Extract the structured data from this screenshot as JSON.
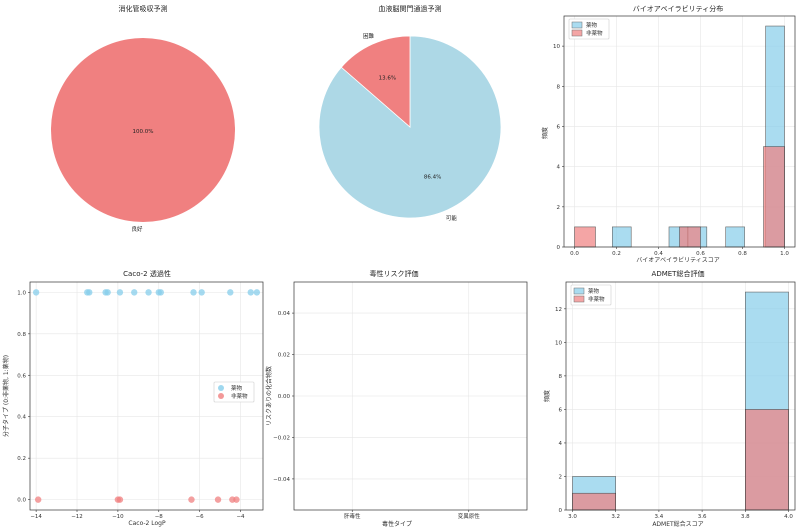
{
  "chart_data": [
    {
      "type": "pie",
      "title": "消化管吸収予測",
      "slices": [
        {
          "label": "良好",
          "value": 100.0,
          "pct_label": "100.0%",
          "color": "#f08080"
        }
      ]
    },
    {
      "type": "pie",
      "title": "血液脳関門通過予測",
      "slices": [
        {
          "label": "可能",
          "value": 86.4,
          "pct_label": "86.4%",
          "color": "#add8e6"
        },
        {
          "label": "困難",
          "value": 13.6,
          "pct_label": "13.6%",
          "color": "#f08080"
        }
      ]
    },
    {
      "type": "bar",
      "title": "バイオアベイラビリティ分布",
      "xlabel": "バイオアベイラビリティスコア",
      "ylabel": "頻度",
      "xlim": [
        -0.05,
        1.05
      ],
      "ylim": [
        0,
        11.5
      ],
      "xticks": [
        0.0,
        0.2,
        0.4,
        0.6,
        0.8,
        1.0
      ],
      "xtick_labels": [
        "0.0",
        "0.2",
        "0.4",
        "0.6",
        "0.8",
        "1.0"
      ],
      "yticks": [
        0,
        2,
        4,
        6,
        8,
        10
      ],
      "legend": [
        "薬物",
        "非薬物"
      ],
      "series": [
        {
          "name": "薬物",
          "color": "#87ceeb",
          "bins": [
            [
              0.18,
              0.27,
              1
            ],
            [
              0.45,
              0.54,
              1
            ],
            [
              0.54,
              0.63,
              1
            ],
            [
              0.72,
              0.81,
              1
            ],
            [
              0.91,
              1.0,
              11
            ]
          ]
        },
        {
          "name": "非薬物",
          "color": "#f08080",
          "bins": [
            [
              0.0,
              0.1,
              1
            ],
            [
              0.5,
              0.6,
              1
            ],
            [
              0.9,
              1.0,
              5
            ]
          ]
        }
      ]
    },
    {
      "type": "scatter",
      "title": "Caco-2 透過性",
      "xlabel": "Caco-2 LogP",
      "ylabel": "分子タイプ (0:非薬物, 1:薬物)",
      "xlim": [
        -14.3,
        -2.9
      ],
      "ylim": [
        -0.05,
        1.05
      ],
      "xticks": [
        -14,
        -12,
        -10,
        -8,
        -6,
        -4
      ],
      "xtick_labels": [
        "−14",
        "−12",
        "−10",
        "−8",
        "−6",
        "−4"
      ],
      "yticks": [
        0.0,
        0.2,
        0.4,
        0.6,
        0.8,
        1.0
      ],
      "ytick_labels": [
        "0.0",
        "0.2",
        "0.4",
        "0.6",
        "0.8",
        "1.0"
      ],
      "legend": [
        "薬物",
        "非薬物"
      ],
      "series": [
        {
          "name": "薬物",
          "color": "#87ceeb",
          "x": [
            -14.0,
            -11.5,
            -11.4,
            -10.6,
            -10.5,
            -9.9,
            -9.2,
            -8.5,
            -8.0,
            -7.9,
            -6.3,
            -5.9,
            -4.5,
            -3.5,
            -3.2
          ],
          "y": 1
        },
        {
          "name": "非薬物",
          "color": "#f08080",
          "x": [
            -13.9,
            -10.0,
            -9.9,
            -6.4,
            -5.1,
            -4.4,
            -4.2
          ],
          "y": 0
        }
      ]
    },
    {
      "type": "bar",
      "title": "毒性リスク評価",
      "xlabel": "毒性タイプ",
      "ylabel": "リスクありの化合物数",
      "categories": [
        "肝毒性",
        "変異原性"
      ],
      "values": [
        0,
        0
      ],
      "ylim": [
        -0.055,
        0.055
      ],
      "yticks": [
        -0.04,
        -0.02,
        0.0,
        0.02,
        0.04
      ],
      "ytick_labels": [
        "−0.04",
        "−0.02",
        "0.00",
        "0.02",
        "0.04"
      ]
    },
    {
      "type": "bar",
      "title": "ADMET総合評価",
      "xlabel": "ADMET総合スコア",
      "ylabel": "頻度",
      "xlim": [
        2.97,
        4.03
      ],
      "ylim": [
        0,
        13.6
      ],
      "xticks": [
        3.0,
        3.2,
        3.4,
        3.6,
        3.8,
        4.0
      ],
      "xtick_labels": [
        "3.0",
        "3.2",
        "3.4",
        "3.6",
        "3.8",
        "4.0"
      ],
      "yticks": [
        0,
        2,
        4,
        6,
        8,
        10,
        12
      ],
      "legend": [
        "薬物",
        "非薬物"
      ],
      "series": [
        {
          "name": "薬物",
          "color": "#87ceeb",
          "bins": [
            [
              3.0,
              3.2,
              2
            ],
            [
              3.8,
              4.0,
              13
            ]
          ]
        },
        {
          "name": "非薬物",
          "color": "#f08080",
          "bins": [
            [
              3.0,
              3.2,
              1
            ],
            [
              3.8,
              4.0,
              6
            ]
          ]
        }
      ]
    }
  ]
}
